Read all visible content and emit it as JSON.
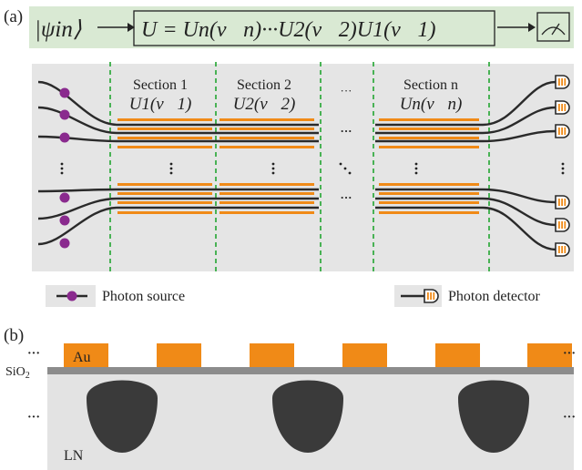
{
  "colors": {
    "flow_bg": "#d9e9d3",
    "chip_bg": "#e5e5e5",
    "waveguide": "#2a2a2a",
    "electrode": "#f08a17",
    "source": "#8a2a8e",
    "divider": "#2eaa3c",
    "sio2": "#8c8c8c",
    "ln_bg": "#e3e3e3",
    "mode": "#3a3a3a"
  },
  "panel_a": {
    "label": "(a)",
    "flow": {
      "input_state": "|ψin⟩",
      "unitary": "U = Un(v⃗n)···U2(v⃗2)U1(v⃗1)",
      "measurement_icon": "meter-icon"
    },
    "sections": [
      {
        "title": "Section 1",
        "op": "U1(v⃗1)"
      },
      {
        "title": "Section 2",
        "op": "U2(v⃗2)"
      },
      {
        "title": "Section n",
        "op": "Un(v⃗n)"
      }
    ],
    "ellipsis": "···",
    "legend": {
      "source": "Photon source",
      "detector": "Photon detector"
    }
  },
  "panel_b": {
    "label": "(b)",
    "electrode_label": "Au",
    "sio2_label": "SiO2",
    "substrate_label": "LN",
    "ellipsis": "···"
  }
}
